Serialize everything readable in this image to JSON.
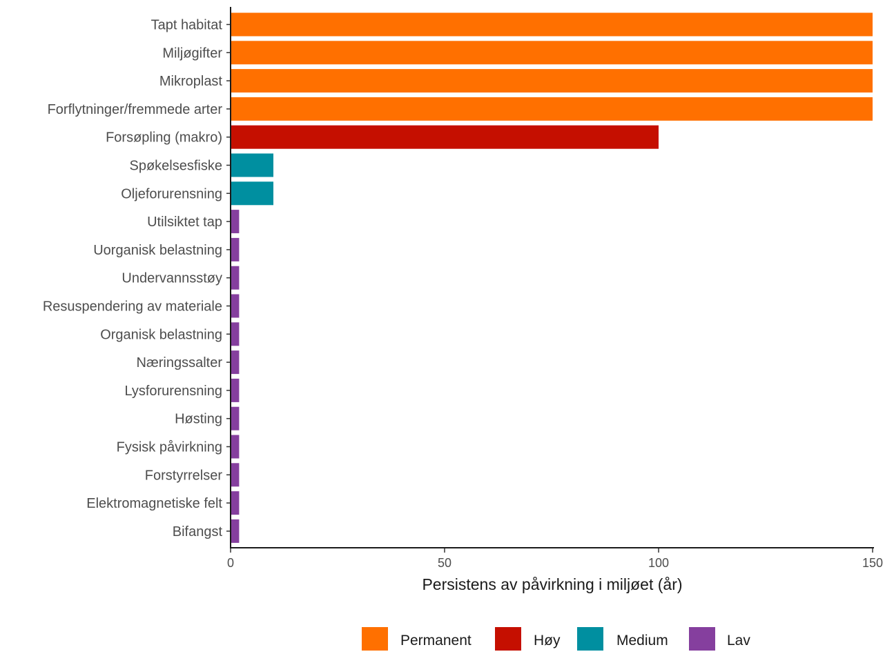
{
  "chart_data": {
    "type": "bar",
    "orientation": "horizontal",
    "categories": [
      "Tapt habitat",
      "Miljøgifter",
      "Mikroplast",
      "Forflytninger/fremmede arter",
      "Forsøpling (makro)",
      "Spøkelsesfiske",
      "Oljeforurensning",
      "Utilsiktet tap",
      "Uorganisk belastning",
      "Undervannsstøy",
      "Resuspendering av materiale",
      "Organisk belastning",
      "Næringssalter",
      "Lysforurensning",
      "Høsting",
      "Fysisk påvirkning",
      "Forstyrrelser",
      "Elektromagnetiske felt",
      "Bifangst"
    ],
    "values": [
      150,
      150,
      150,
      150,
      100,
      10,
      10,
      2,
      2,
      2,
      2,
      2,
      2,
      2,
      2,
      2,
      2,
      2,
      2
    ],
    "groups": [
      "Permanent",
      "Permanent",
      "Permanent",
      "Permanent",
      "Høy",
      "Medium",
      "Medium",
      "Lav",
      "Lav",
      "Lav",
      "Lav",
      "Lav",
      "Lav",
      "Lav",
      "Lav",
      "Lav",
      "Lav",
      "Lav",
      "Lav"
    ],
    "xlabel": "Persistens av påvirkning i miljøet (år)",
    "ylabel": "",
    "xlim": [
      0,
      150
    ],
    "xticks": [
      0,
      50,
      100,
      150
    ],
    "xtick_labels": [
      "0",
      "50",
      "100",
      "150"
    ],
    "grid": false,
    "legend": {
      "position": "bottom",
      "entries": [
        {
          "name": "Permanent",
          "color": "#FF7000"
        },
        {
          "name": "Høy",
          "color": "#C50F00"
        },
        {
          "name": "Medium",
          "color": "#008FA0"
        },
        {
          "name": "Lav",
          "color": "#853F9E"
        }
      ]
    }
  }
}
